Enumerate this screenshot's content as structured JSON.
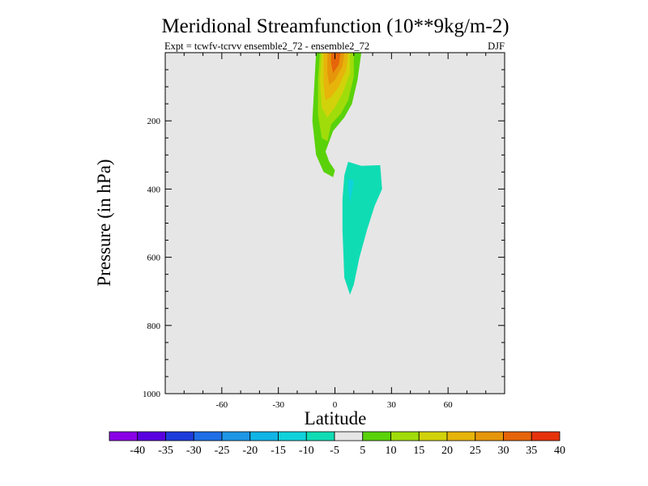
{
  "chart_data": {
    "type": "contour",
    "title": "Meridional Streamfunction (10**9kg/m-2)",
    "subtitle_left": "Expt = tcwfv-tcrvv  ensemble2_72 - ensemble2_72",
    "subtitle_right": "DJF",
    "xlabel": "Latitude",
    "ylabel": "Pressure (in hPa)",
    "xlim": [
      -90,
      90
    ],
    "ylim": [
      0,
      1000
    ],
    "x_ticks": [
      -60,
      -30,
      0,
      30,
      60
    ],
    "x_tick_labels": [
      "-60",
      "-30",
      "0",
      "30",
      "60"
    ],
    "y_ticks": [
      200,
      400,
      600,
      800,
      1000
    ],
    "y_tick_labels": [
      "200",
      "400",
      "600",
      "800",
      "1000"
    ],
    "background_color": "#e6e6e6",
    "colorbar": {
      "levels": [
        -40,
        -35,
        -30,
        -25,
        -20,
        -15,
        -10,
        -5,
        5,
        10,
        15,
        20,
        25,
        30,
        35,
        40
      ],
      "labels": [
        "-40",
        "-35",
        "-30",
        "-25",
        "-20",
        "-15",
        "-10",
        "-5",
        "5",
        "10",
        "15",
        "20",
        "25",
        "30",
        "35",
        "40"
      ],
      "colors": [
        "#8a00e6",
        "#5a00e0",
        "#1e3cdc",
        "#1e6ee6",
        "#1e96e6",
        "#10b4e6",
        "#10d2dc",
        "#10dcb4",
        "#e6e6e6",
        "#5ad20a",
        "#a0dc0a",
        "#d2d20a",
        "#e6b40a",
        "#e6960a",
        "#e6640a",
        "#e6320a"
      ]
    },
    "regions": [
      {
        "name": "positive-5-10",
        "color": "#5ad20a",
        "points": [
          [
            -7,
            -1
          ],
          [
            14,
            -1
          ],
          [
            12,
            80
          ],
          [
            9,
            150
          ],
          [
            5,
            190
          ],
          [
            -1,
            230
          ],
          [
            -5,
            290
          ],
          [
            -3,
            320
          ],
          [
            0,
            345
          ],
          [
            -1,
            365
          ],
          [
            -6,
            350
          ],
          [
            -10,
            300
          ],
          [
            -12,
            200
          ],
          [
            -11,
            100
          ],
          [
            -10,
            0
          ]
        ]
      },
      {
        "name": "positive-10-15",
        "color": "#a0dc0a",
        "points": [
          [
            -7,
            -1
          ],
          [
            10,
            -1
          ],
          [
            10,
            70
          ],
          [
            7,
            140
          ],
          [
            3,
            180
          ],
          [
            -2,
            210
          ],
          [
            -4,
            260
          ],
          [
            -7,
            250
          ],
          [
            -9,
            180
          ],
          [
            -9,
            80
          ],
          [
            -8,
            0
          ]
        ]
      },
      {
        "name": "positive-15-20",
        "color": "#d2d20a",
        "points": [
          [
            -6,
            -1
          ],
          [
            8,
            -1
          ],
          [
            8,
            60
          ],
          [
            4,
            120
          ],
          [
            0,
            160
          ],
          [
            -4,
            190
          ],
          [
            -7,
            160
          ],
          [
            -8,
            80
          ],
          [
            -7,
            0
          ]
        ]
      },
      {
        "name": "positive-20-25",
        "color": "#e6b40a",
        "points": [
          [
            -5,
            -1
          ],
          [
            7,
            -1
          ],
          [
            6,
            50
          ],
          [
            2,
            100
          ],
          [
            -2,
            130
          ],
          [
            -5,
            140
          ],
          [
            -6,
            90
          ],
          [
            -6,
            0
          ]
        ]
      },
      {
        "name": "positive-25-30",
        "color": "#e6960a",
        "points": [
          [
            -3,
            -1
          ],
          [
            5,
            -1
          ],
          [
            4,
            40
          ],
          [
            0,
            80
          ],
          [
            -3,
            95
          ],
          [
            -4,
            60
          ],
          [
            -4,
            0
          ]
        ]
      },
      {
        "name": "positive-30-35",
        "color": "#e6640a",
        "points": [
          [
            -1,
            -1
          ],
          [
            3,
            -1
          ],
          [
            2,
            35
          ],
          [
            -1,
            60
          ],
          [
            -2,
            30
          ],
          [
            -2,
            0
          ]
        ]
      },
      {
        "name": "negative-minus5-minus10",
        "color": "#10dcb4",
        "points": [
          [
            7,
            320
          ],
          [
            14,
            332
          ],
          [
            24,
            330
          ],
          [
            25,
            400
          ],
          [
            21,
            450
          ],
          [
            17,
            520
          ],
          [
            13,
            600
          ],
          [
            10,
            680
          ],
          [
            8,
            710
          ],
          [
            5,
            660
          ],
          [
            4,
            520
          ],
          [
            4,
            430
          ],
          [
            5,
            360
          ]
        ]
      },
      {
        "name": "negative-minus10-minus15",
        "color": "#10d2dc",
        "points": [
          [
            7,
            370
          ],
          [
            10,
            375
          ],
          [
            9,
            410
          ],
          [
            8,
            440
          ],
          [
            7,
            400
          ]
        ]
      }
    ]
  }
}
